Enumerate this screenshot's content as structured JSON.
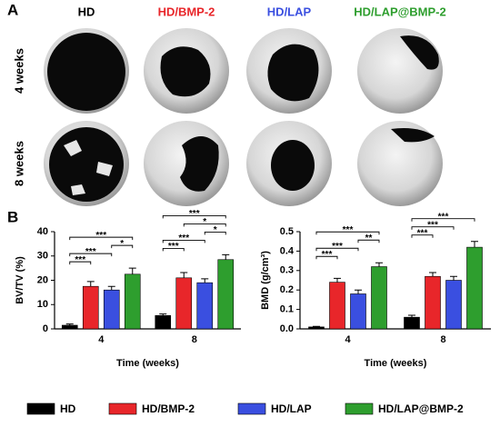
{
  "panel_a": {
    "label": "A",
    "columns": [
      {
        "name": "HD",
        "color": "#000000"
      },
      {
        "name": "HD/BMP-2",
        "color": "#e8262a"
      },
      {
        "name": "HD/LAP",
        "color": "#3a4fe0"
      },
      {
        "name": "HD/LAP@BMP-2",
        "color": "#2e9e2e"
      }
    ],
    "rows": [
      "4 weeks",
      "8 weeks"
    ]
  },
  "panel_b": {
    "label": "B"
  },
  "chart_data": [
    {
      "type": "bar",
      "y_label": "BV/TV (%)",
      "x_label": "Time (weeks)",
      "categories": [
        "4",
        "8"
      ],
      "ylim": [
        0,
        40
      ],
      "yticks": [
        0,
        10,
        20,
        30,
        40
      ],
      "series": [
        {
          "name": "HD",
          "color": "#000000",
          "values": [
            1.5,
            5.5
          ],
          "errors": [
            0.5,
            0.6
          ]
        },
        {
          "name": "HD/BMP-2",
          "color": "#e8262a",
          "values": [
            17.5,
            21
          ],
          "errors": [
            2,
            2.2
          ]
        },
        {
          "name": "HD/LAP",
          "color": "#3a4fe0",
          "values": [
            16,
            19
          ],
          "errors": [
            1.5,
            1.6
          ]
        },
        {
          "name": "HD/LAP@BMP-2",
          "color": "#2e9e2e",
          "values": [
            22.5,
            28.5
          ],
          "errors": [
            2.5,
            2
          ]
        }
      ],
      "comparisons": [
        {
          "category": 0,
          "from": 0,
          "to": 1,
          "label": "***"
        },
        {
          "category": 0,
          "from": 0,
          "to": 2,
          "label": "***"
        },
        {
          "category": 0,
          "from": 2,
          "to": 3,
          "label": "*"
        },
        {
          "category": 0,
          "from": 0,
          "to": 3,
          "label": "***"
        },
        {
          "category": 1,
          "from": 0,
          "to": 1,
          "label": "***"
        },
        {
          "category": 1,
          "from": 0,
          "to": 2,
          "label": "***"
        },
        {
          "category": 1,
          "from": 2,
          "to": 3,
          "label": "*"
        },
        {
          "category": 1,
          "from": 1,
          "to": 3,
          "label": "*"
        },
        {
          "category": 1,
          "from": 0,
          "to": 3,
          "label": "***"
        }
      ]
    },
    {
      "type": "bar",
      "y_label": "BMD (g/cm³)",
      "x_label": "Time (weeks)",
      "categories": [
        "4",
        "8"
      ],
      "ylim": [
        0,
        0.5
      ],
      "yticks": [
        {
          "value": 0,
          "label": "0.0"
        },
        0.1,
        0.2,
        0.3,
        0.4,
        0.5
      ],
      "series": [
        {
          "name": "HD",
          "color": "#000000",
          "values": [
            0.01,
            0.06
          ],
          "errors": [
            0.003,
            0.01
          ]
        },
        {
          "name": "HD/BMP-2",
          "color": "#e8262a",
          "values": [
            0.24,
            0.27
          ],
          "errors": [
            0.02,
            0.02
          ]
        },
        {
          "name": "HD/LAP",
          "color": "#3a4fe0",
          "values": [
            0.18,
            0.25
          ],
          "errors": [
            0.02,
            0.02
          ]
        },
        {
          "name": "HD/LAP@BMP-2",
          "color": "#2e9e2e",
          "values": [
            0.32,
            0.42
          ],
          "errors": [
            0.02,
            0.03
          ]
        }
      ],
      "comparisons": [
        {
          "category": 0,
          "from": 0,
          "to": 1,
          "label": "***"
        },
        {
          "category": 0,
          "from": 0,
          "to": 2,
          "label": "***"
        },
        {
          "category": 0,
          "from": 2,
          "to": 3,
          "label": "**"
        },
        {
          "category": 0,
          "from": 0,
          "to": 3,
          "label": "***"
        },
        {
          "category": 1,
          "from": 0,
          "to": 1,
          "label": "***"
        },
        {
          "category": 1,
          "from": 0,
          "to": 2,
          "label": "***"
        },
        {
          "category": 1,
          "from": 0,
          "to": 3,
          "label": "***"
        }
      ]
    }
  ]
}
